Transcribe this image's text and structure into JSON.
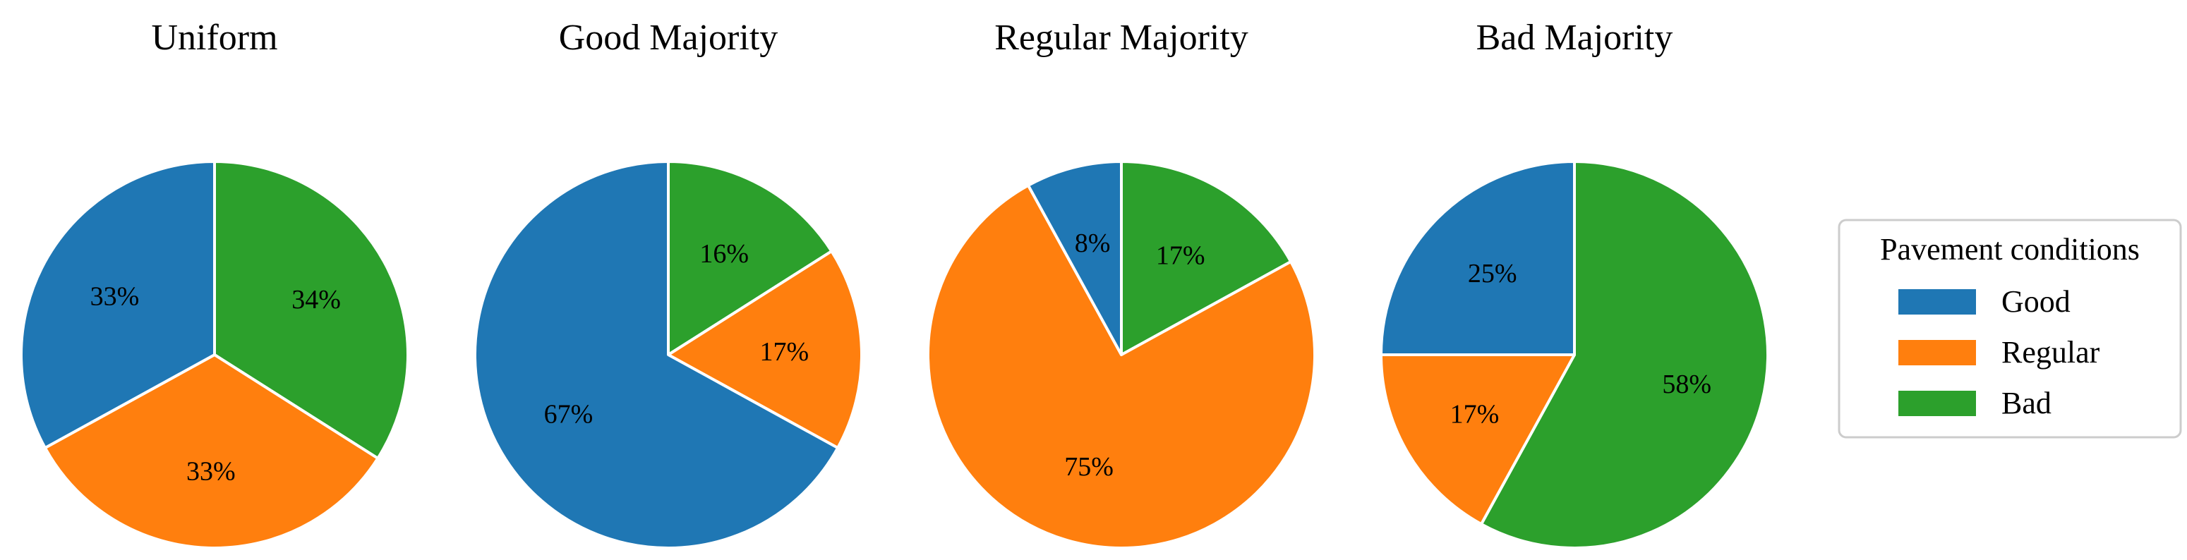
{
  "chart_data": {
    "type": "pie",
    "legend": {
      "title": "Pavement conditions",
      "placement": "right",
      "entries": [
        {
          "name": "Good",
          "color": "#1f77b4"
        },
        {
          "name": "Regular",
          "color": "#ff7f0e"
        },
        {
          "name": "Bad",
          "color": "#2ca02c"
        }
      ]
    },
    "pies": [
      {
        "title": "Uniform",
        "slices": [
          {
            "category": "Good",
            "value": 33,
            "label": "33%"
          },
          {
            "category": "Regular",
            "value": 33,
            "label": "33%"
          },
          {
            "category": "Bad",
            "value": 34,
            "label": "34%"
          }
        ]
      },
      {
        "title": "Good Majority",
        "slices": [
          {
            "category": "Good",
            "value": 67,
            "label": "67%"
          },
          {
            "category": "Regular",
            "value": 17,
            "label": "17%"
          },
          {
            "category": "Bad",
            "value": 16,
            "label": "16%"
          }
        ]
      },
      {
        "title": "Regular Majority",
        "slices": [
          {
            "category": "Good",
            "value": 8,
            "label": "8%"
          },
          {
            "category": "Regular",
            "value": 75,
            "label": "75%"
          },
          {
            "category": "Bad",
            "value": 17,
            "label": "17%"
          }
        ]
      },
      {
        "title": "Bad Majority",
        "slices": [
          {
            "category": "Good",
            "value": 25,
            "label": "25%"
          },
          {
            "category": "Regular",
            "value": 17,
            "label": "17%"
          },
          {
            "category": "Bad",
            "value": 58,
            "label": "58%"
          }
        ]
      }
    ]
  }
}
